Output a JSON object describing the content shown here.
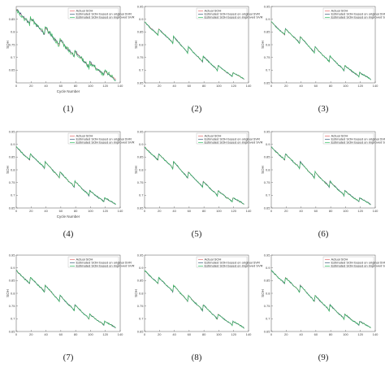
{
  "chart_data": [
    {
      "type": "line",
      "caption": "(1)",
      "xlabel": "Cycle Number",
      "ylabel": "SOH",
      "xlim": [
        0,
        140
      ],
      "ylim": [
        0.6,
        0.9
      ],
      "xticks": [
        0,
        20,
        40,
        60,
        80,
        100,
        120,
        140
      ],
      "yticks": [
        0.65,
        0.7,
        0.75,
        0.8,
        0.85
      ],
      "legend_position": "top-right",
      "series": [
        {
          "name": "Actual SOH",
          "color": "#e06060"
        },
        {
          "name": "Estimated SOH based on original SVR",
          "color": "#3a5a7a"
        },
        {
          "name": "Estimated SOH based on improved SVR",
          "color": "#30c060"
        }
      ]
    },
    {
      "type": "line",
      "caption": "(2)",
      "xlabel": "",
      "ylabel": "SOH",
      "xlim": [
        0,
        140
      ],
      "ylim": [
        0.65,
        0.95
      ],
      "xticks": [
        0,
        20,
        40,
        60,
        80,
        100,
        120,
        140
      ],
      "yticks": [
        0.65,
        0.7,
        0.75,
        0.8,
        0.85,
        0.9,
        0.95
      ],
      "legend_position": "top-right",
      "series": [
        {
          "name": "Actual SOH",
          "color": "#e06060"
        },
        {
          "name": "Estimated SOH based on original SVR",
          "color": "#3a5a7a"
        },
        {
          "name": "Estimated SOH based on improved SVR",
          "color": "#30c060"
        }
      ]
    },
    {
      "type": "line",
      "caption": "(3)",
      "xlabel": "",
      "ylabel": "SOH",
      "xlim": [
        0,
        140
      ],
      "ylim": [
        0.65,
        0.95
      ],
      "xticks": [
        0,
        20,
        40,
        60,
        80,
        100,
        120,
        140
      ],
      "yticks": [
        0.65,
        0.7,
        0.75,
        0.8,
        0.85,
        0.9,
        0.95
      ],
      "legend_position": "top-right",
      "series": [
        {
          "name": "Actual SOH",
          "color": "#e06060"
        },
        {
          "name": "Estimated SOH based on original SVR",
          "color": "#3a5a7a"
        },
        {
          "name": "Estimated SOH based on improved SVR",
          "color": "#30c060"
        }
      ]
    },
    {
      "type": "line",
      "caption": "(4)",
      "xlabel": "Cycle Number",
      "ylabel": "SOH",
      "xlim": [
        0,
        140
      ],
      "ylim": [
        0.65,
        0.95
      ],
      "xticks": [
        0,
        20,
        40,
        60,
        80,
        100,
        120,
        140
      ],
      "yticks": [
        0.65,
        0.7,
        0.75,
        0.8,
        0.85,
        0.9,
        0.95
      ],
      "legend_position": "top-right",
      "series": [
        {
          "name": "Actual SOH",
          "color": "#e06060"
        },
        {
          "name": "Estimated SOH based on original SVR",
          "color": "#3a5a7a"
        },
        {
          "name": "Estimated SOH based on improved SVR",
          "color": "#30c060"
        }
      ]
    },
    {
      "type": "line",
      "caption": "(5)",
      "xlabel": "",
      "ylabel": "SOH",
      "xlim": [
        0,
        140
      ],
      "ylim": [
        0.65,
        0.95
      ],
      "xticks": [
        0,
        20,
        40,
        60,
        80,
        100,
        120,
        140
      ],
      "yticks": [
        0.65,
        0.7,
        0.75,
        0.8,
        0.85,
        0.9,
        0.95
      ],
      "legend_position": "top-right",
      "series": [
        {
          "name": "Actual SOH",
          "color": "#e06060"
        },
        {
          "name": "Estimated SOH based on original SVR",
          "color": "#3a5a7a"
        },
        {
          "name": "Estimated SOH based on improved SVR",
          "color": "#30c060"
        }
      ]
    },
    {
      "type": "line",
      "caption": "(6)",
      "xlabel": "",
      "ylabel": "SOH",
      "xlim": [
        0,
        140
      ],
      "ylim": [
        0.65,
        0.95
      ],
      "xticks": [
        0,
        20,
        40,
        60,
        80,
        100,
        120,
        140
      ],
      "yticks": [
        0.65,
        0.7,
        0.75,
        0.8,
        0.85,
        0.9,
        0.95
      ],
      "legend_position": "top-right",
      "series": [
        {
          "name": "Actual SOH",
          "color": "#e06060"
        },
        {
          "name": "Estimated SOH based on original SVR",
          "color": "#3a5a7a"
        },
        {
          "name": "Estimated SOH based on improved SVR",
          "color": "#30c060"
        }
      ]
    },
    {
      "type": "line",
      "caption": "(7)",
      "xlabel": "",
      "ylabel": "SOH",
      "xlim": [
        0,
        140
      ],
      "ylim": [
        0.65,
        0.95
      ],
      "xticks": [
        0,
        20,
        40,
        60,
        80,
        100,
        120,
        140
      ],
      "yticks": [
        0.65,
        0.7,
        0.75,
        0.8,
        0.85,
        0.9,
        0.95
      ],
      "legend_position": "top-right",
      "series": [
        {
          "name": "Actual SOH",
          "color": "#e06060"
        },
        {
          "name": "Estimated SOH based on original SVR",
          "color": "#3a5a7a"
        },
        {
          "name": "Estimated SOH based on improved SVR",
          "color": "#30c060"
        }
      ]
    },
    {
      "type": "line",
      "caption": "(8)",
      "xlabel": "",
      "ylabel": "SOH",
      "xlim": [
        0,
        140
      ],
      "ylim": [
        0.65,
        0.95
      ],
      "xticks": [
        0,
        20,
        40,
        60,
        80,
        100,
        120,
        140
      ],
      "yticks": [
        0.65,
        0.7,
        0.75,
        0.8,
        0.85,
        0.9,
        0.95
      ],
      "legend_position": "top-right",
      "series": [
        {
          "name": "Actual SOH",
          "color": "#e06060"
        },
        {
          "name": "Estimated SOH based on original SVR",
          "color": "#3a5a7a"
        },
        {
          "name": "Estimated SOH based on improved SVR",
          "color": "#30c060"
        }
      ]
    },
    {
      "type": "line",
      "caption": "(9)",
      "xlabel": "",
      "ylabel": "SOH",
      "xlim": [
        0,
        140
      ],
      "ylim": [
        0.65,
        0.95
      ],
      "xticks": [
        0,
        20,
        40,
        60,
        80,
        100,
        120,
        140
      ],
      "yticks": [
        0.65,
        0.7,
        0.75,
        0.8,
        0.85,
        0.9,
        0.95
      ],
      "legend_position": "top-right",
      "series": [
        {
          "name": "Actual SOH",
          "color": "#e06060"
        },
        {
          "name": "Estimated SOH based on original SVR",
          "color": "#3a5a7a"
        },
        {
          "name": "Estimated SOH based on improved SVR",
          "color": "#30c060"
        }
      ]
    }
  ],
  "soh_curve": {
    "x": [
      0,
      5,
      10,
      15,
      18,
      19,
      25,
      30,
      35,
      38,
      39,
      45,
      50,
      55,
      58,
      59,
      65,
      70,
      75,
      78,
      79,
      85,
      90,
      95,
      98,
      99,
      105,
      110,
      115,
      118,
      119,
      125,
      130,
      134
    ],
    "y": [
      0.89,
      0.875,
      0.86,
      0.848,
      0.838,
      0.862,
      0.845,
      0.83,
      0.818,
      0.805,
      0.832,
      0.812,
      0.795,
      0.78,
      0.768,
      0.792,
      0.772,
      0.757,
      0.744,
      0.732,
      0.755,
      0.737,
      0.722,
      0.71,
      0.698,
      0.718,
      0.704,
      0.692,
      0.683,
      0.675,
      0.69,
      0.68,
      0.672,
      0.664
    ]
  }
}
